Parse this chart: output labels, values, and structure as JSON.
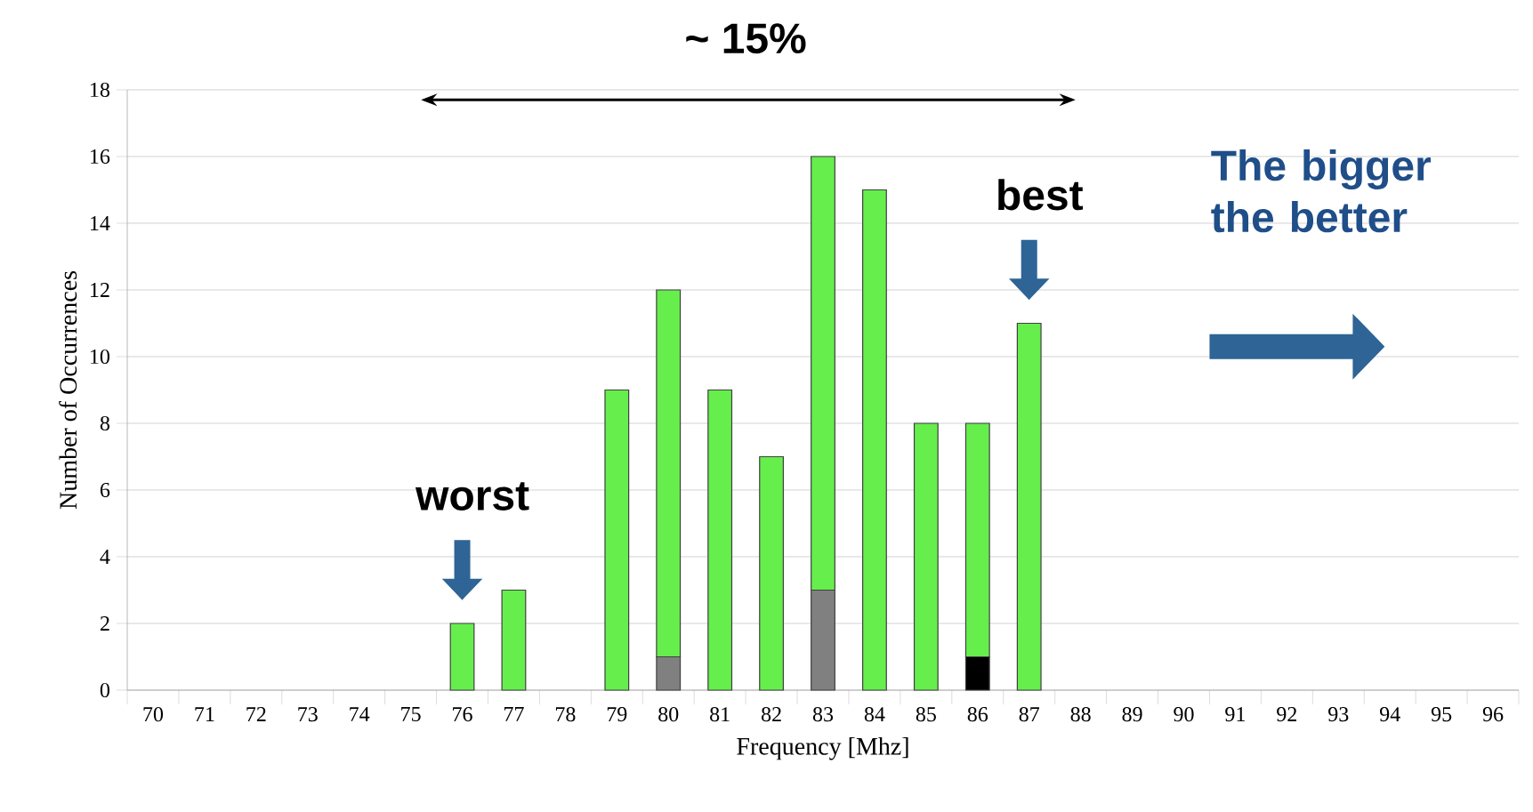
{
  "chart_data": {
    "type": "bar",
    "stacked": true,
    "xlabel": "Frequency [Mhz]",
    "ylabel": "Number of Occurrences",
    "categories": [
      "70",
      "71",
      "72",
      "73",
      "74",
      "75",
      "76",
      "77",
      "78",
      "79",
      "80",
      "81",
      "82",
      "83",
      "84",
      "85",
      "86",
      "87",
      "88",
      "89",
      "90",
      "91",
      "92",
      "93",
      "94",
      "95",
      "96"
    ],
    "series": [
      {
        "color": "#000000",
        "values": [
          null,
          null,
          null,
          null,
          null,
          null,
          null,
          null,
          null,
          null,
          null,
          null,
          null,
          null,
          null,
          null,
          1,
          null,
          null,
          null,
          null,
          null,
          null,
          null,
          null,
          null,
          null
        ]
      },
      {
        "color": "#808080",
        "values": [
          null,
          null,
          null,
          null,
          null,
          null,
          null,
          null,
          null,
          null,
          1,
          null,
          null,
          3,
          null,
          null,
          null,
          null,
          null,
          null,
          null,
          null,
          null,
          null,
          null,
          null,
          null
        ]
      },
      {
        "color": "#66ee4d",
        "values": [
          null,
          null,
          null,
          null,
          null,
          null,
          2,
          3,
          null,
          9,
          11,
          9,
          7,
          13,
          15,
          8,
          7,
          11,
          null,
          null,
          null,
          null,
          null,
          null,
          null,
          null,
          null
        ]
      }
    ],
    "ylim": [
      0,
      18
    ],
    "yticks": [
      0,
      2,
      4,
      6,
      8,
      10,
      12,
      14,
      16,
      18
    ],
    "grid": "y",
    "annotations": [
      "~ 15%",
      {
        "text": "worst",
        "x": "76",
        "y": 2
      },
      {
        "text": "best",
        "x": "87",
        "y": 11
      },
      "The bigger the better"
    ]
  }
}
